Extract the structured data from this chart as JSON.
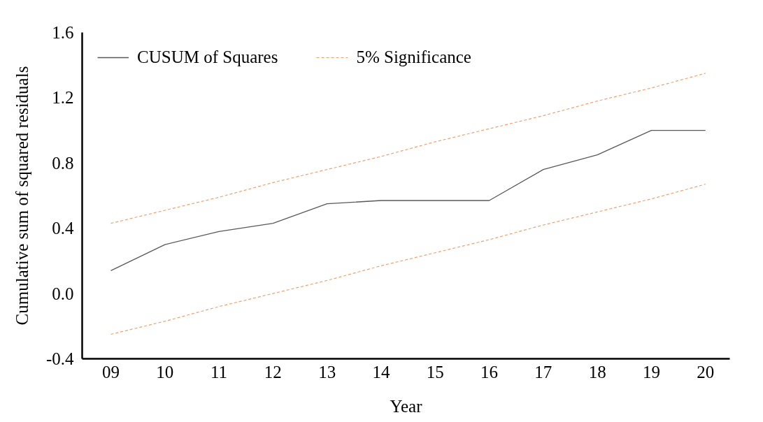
{
  "chart_data": {
    "type": "line",
    "xlabel": "Year",
    "ylabel": "Cumulative sum of squared residuals",
    "categories": [
      "09",
      "10",
      "11",
      "12",
      "13",
      "14",
      "15",
      "16",
      "17",
      "18",
      "19",
      "20"
    ],
    "series": [
      {
        "name": "CUSUM of Squares",
        "color": "#595959",
        "line_style": "solid",
        "values": [
          0.14,
          0.3,
          0.38,
          0.43,
          0.55,
          0.57,
          0.57,
          0.57,
          0.76,
          0.85,
          1.0,
          1.0
        ]
      },
      {
        "name": "5% Significance",
        "color": "#f2a070",
        "line_style": "dashed",
        "values": [
          0.43,
          0.51,
          0.59,
          0.68,
          0.76,
          0.84,
          0.93,
          1.01,
          1.09,
          1.18,
          1.26,
          1.35
        ]
      },
      {
        "color": "#f2a070",
        "line_style": "dashed",
        "values": [
          -0.25,
          -0.17,
          -0.08,
          0.0,
          0.08,
          0.17,
          0.25,
          0.33,
          0.42,
          0.5,
          0.58,
          0.67
        ]
      }
    ],
    "ylim": [
      -0.4,
      1.6
    ],
    "yticks": [
      -0.4,
      {
        "value": 0,
        "label": "0.0"
      },
      0.4,
      0.8,
      1.2,
      1.6
    ],
    "legend": "top left"
  }
}
